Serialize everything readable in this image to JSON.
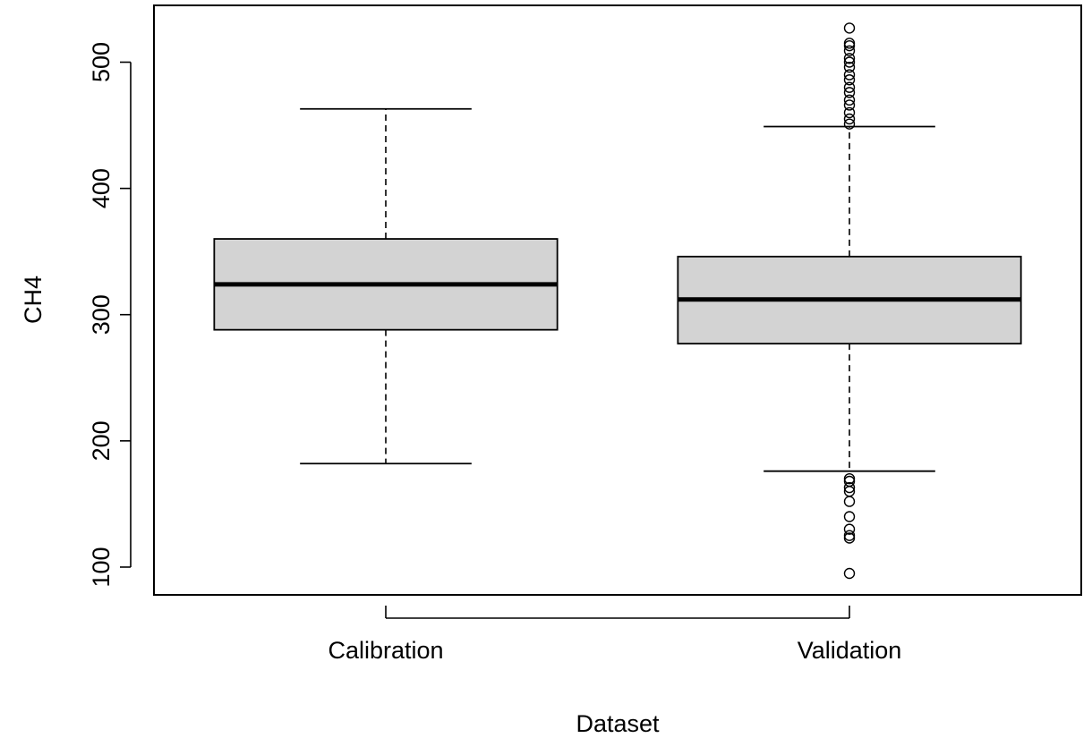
{
  "chart_data": {
    "type": "box",
    "title": "",
    "xlabel": "Dataset",
    "ylabel": "CH4",
    "ylim": [
      78,
      545
    ],
    "yticks": [
      100,
      200,
      300,
      400,
      500
    ],
    "ytick_labels": [
      "100",
      "200",
      "300",
      "400",
      "500"
    ],
    "categories": [
      "Calibration",
      "Validation"
    ],
    "box_fill": "#d3d3d3",
    "grid": false,
    "boxes": [
      {
        "category": "Calibration",
        "whisker_low": 182,
        "q1": 288,
        "median": 324,
        "q3": 360,
        "whisker_high": 463,
        "outliers": []
      },
      {
        "category": "Validation",
        "whisker_low": 176,
        "q1": 277,
        "median": 312,
        "q3": 346,
        "whisker_high": 449,
        "outliers": [
          95,
          123,
          125,
          130,
          140,
          152,
          160,
          163,
          168,
          170,
          451,
          455,
          460,
          466,
          470,
          476,
          480,
          486,
          490,
          496,
          500,
          503,
          509,
          513,
          515,
          527
        ]
      }
    ]
  }
}
